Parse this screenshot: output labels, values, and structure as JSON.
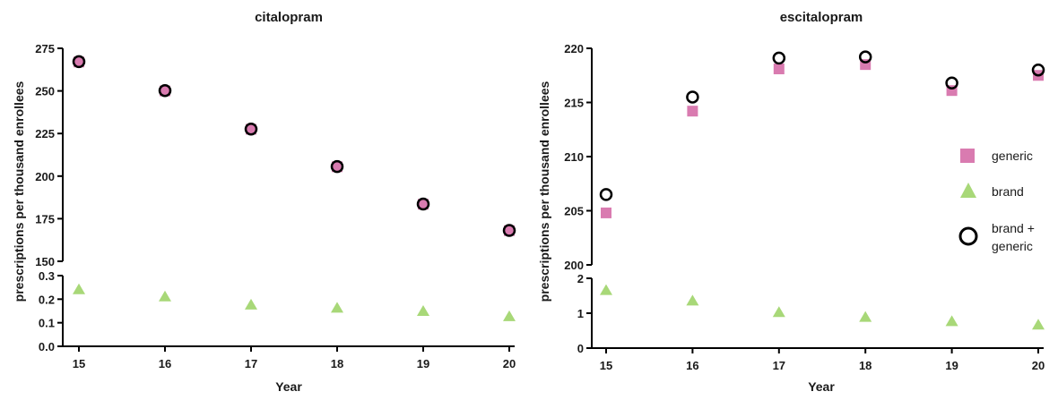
{
  "chart_data": [
    {
      "type": "scatter",
      "title": "citalopram",
      "ylabel": "prescriptions per thousand enrollees",
      "xlabel": "Year",
      "x": [
        15,
        16,
        17,
        18,
        19,
        20
      ],
      "x_ticks": [
        "15",
        "16",
        "17",
        "18",
        "19",
        "20"
      ],
      "broken_y_axis": {
        "upper": {
          "ylim": [
            150,
            275
          ],
          "ticks": [
            "150",
            "175",
            "200",
            "225",
            "250",
            "275"
          ]
        },
        "lower": {
          "ylim": [
            0,
            0.3
          ],
          "ticks": [
            "0.0",
            "0.1",
            "0.2",
            "0.3"
          ]
        }
      },
      "series": [
        {
          "key": "generic",
          "marker": "square",
          "color": "#d97bb0",
          "values": [
            267,
            250,
            227.5,
            205.5,
            183.5,
            168
          ]
        },
        {
          "key": "brand",
          "marker": "triangle",
          "color": "#a8d878",
          "values": [
            0.24,
            0.21,
            0.175,
            0.162,
            0.148,
            0.126
          ]
        },
        {
          "key": "total",
          "marker": "circle",
          "color": "#000000",
          "values": [
            267.2,
            250.2,
            227.6,
            205.6,
            183.6,
            168.1
          ]
        }
      ]
    },
    {
      "type": "scatter",
      "title": "escitalopram",
      "ylabel": "prescriptions per thousand enrollees",
      "xlabel": "Year",
      "x": [
        15,
        16,
        17,
        18,
        19,
        20
      ],
      "x_ticks": [
        "15",
        "16",
        "17",
        "18",
        "19",
        "20"
      ],
      "broken_y_axis": {
        "upper": {
          "ylim": [
            200,
            220
          ],
          "ticks": [
            "200",
            "205",
            "210",
            "215",
            "220"
          ]
        },
        "lower": {
          "ylim": [
            0,
            2
          ],
          "ticks": [
            "0",
            "1",
            "2"
          ]
        }
      },
      "series": [
        {
          "key": "generic",
          "marker": "square",
          "color": "#d97bb0",
          "values": [
            204.8,
            214.2,
            218.1,
            218.5,
            216.1,
            217.5
          ]
        },
        {
          "key": "brand",
          "marker": "triangle",
          "color": "#a8d878",
          "values": [
            1.65,
            1.35,
            1.02,
            0.88,
            0.76,
            0.66
          ]
        },
        {
          "key": "total",
          "marker": "circle",
          "color": "#000000",
          "values": [
            206.5,
            215.5,
            219.1,
            219.2,
            216.8,
            218.0
          ]
        }
      ]
    }
  ],
  "legend": {
    "placement": "right",
    "items": [
      {
        "key": "generic",
        "label": "generic",
        "marker": "square",
        "color": "#d97bb0"
      },
      {
        "key": "brand",
        "label": "brand",
        "marker": "triangle",
        "color": "#a8d878"
      },
      {
        "key": "total",
        "label_lines": [
          "brand +",
          "generic"
        ],
        "marker": "circle",
        "color": "#000000"
      }
    ]
  }
}
